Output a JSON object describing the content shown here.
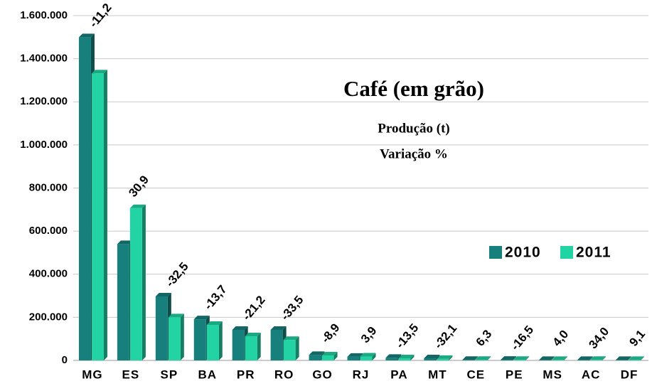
{
  "chart_data": {
    "type": "bar",
    "title": "Café (em grão)",
    "subtitle": [
      "Produção (t)",
      "Variação %"
    ],
    "categories": [
      "MG",
      "ES",
      "SP",
      "BA",
      "PR",
      "RO",
      "GO",
      "RJ",
      "PA",
      "MT",
      "CE",
      "PE",
      "MS",
      "AC",
      "DF"
    ],
    "series": [
      {
        "name": "2010",
        "color": "#17807c",
        "values": [
          1500000,
          540000,
          297000,
          191000,
          142000,
          142000,
          25000,
          17000,
          12000,
          10000,
          2500,
          3000,
          2000,
          2000,
          2000
        ]
      },
      {
        "name": "2011",
        "color": "#22d3a3",
        "values": [
          1332000,
          707000,
          200000,
          165000,
          112000,
          95000,
          23000,
          18000,
          10000,
          7000,
          2600,
          2500,
          2100,
          2600,
          2200
        ]
      }
    ],
    "annotations": [
      "-11,2",
      "30,9",
      "-32,5",
      "-13,7",
      "-21,2",
      "-33,5",
      "-8,9",
      "3,9",
      "-13,5",
      "-32,1",
      "6,3",
      "-16,5",
      "4,0",
      "34,0",
      "9,1"
    ],
    "ylim": [
      0,
      1600000
    ],
    "yticks": [
      0,
      {
        "value": 200000,
        "label": "200.000"
      },
      {
        "value": 400000,
        "label": "400.000"
      },
      {
        "value": 600000,
        "label": "600.000"
      },
      {
        "value": 800000,
        "label": "800.000"
      },
      {
        "value": 1000000,
        "label": "1.000.000"
      },
      {
        "value": 1200000,
        "label": "1.200.000"
      },
      {
        "value": 1400000,
        "label": "1.400.000"
      },
      {
        "value": 1600000,
        "label": "1.600.000"
      }
    ],
    "grid": true,
    "legend": "right"
  }
}
